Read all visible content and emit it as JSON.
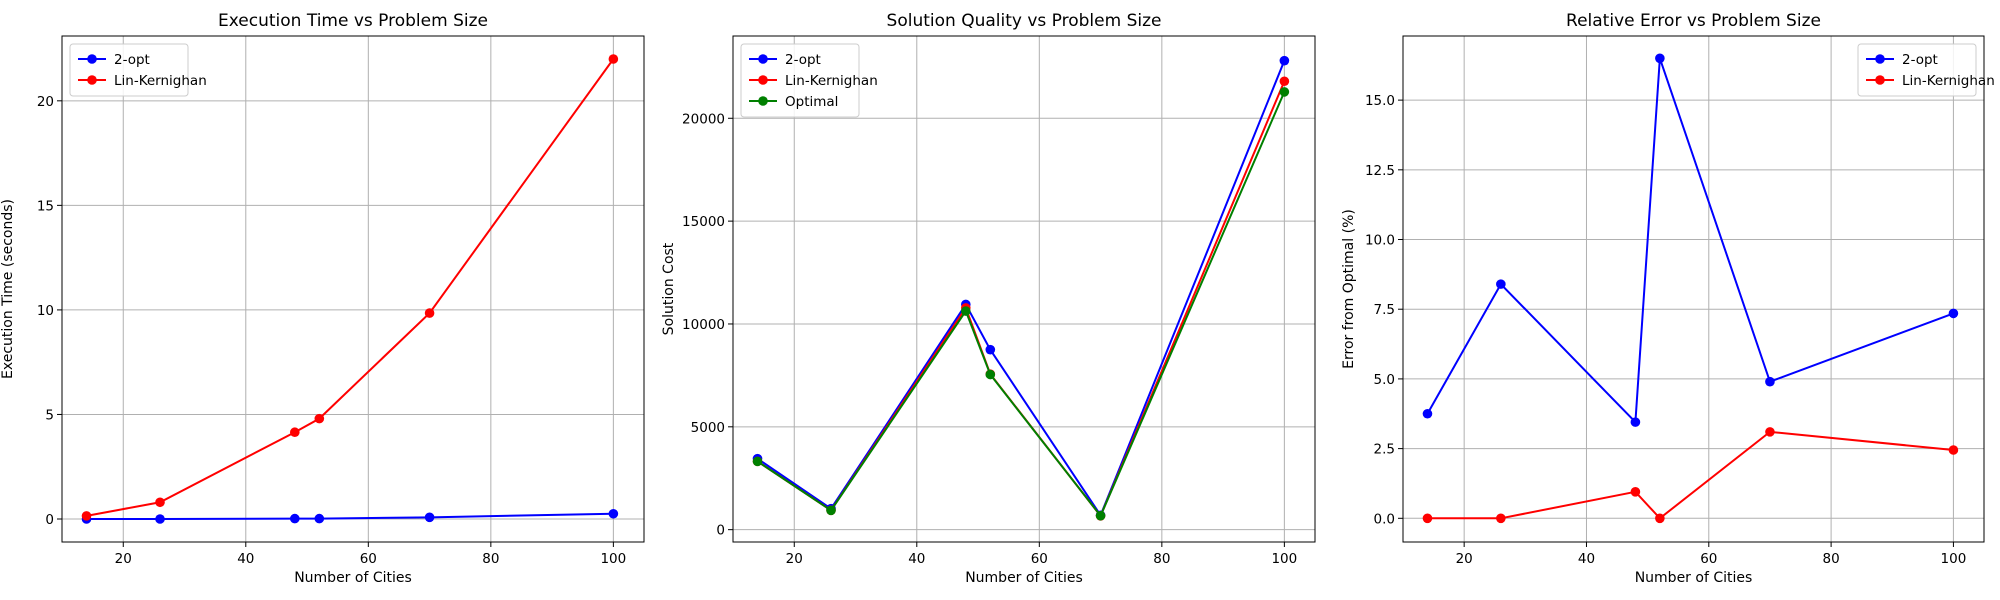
{
  "chart_data": [
    {
      "type": "line",
      "title": "Execution Time vs Problem Size",
      "xlabel": "Number of Cities",
      "ylabel": "Execution Time (seconds)",
      "xlim": [
        10,
        105
      ],
      "ylim": [
        -1.1,
        23.1
      ],
      "xticks": [
        20,
        40,
        60,
        80,
        100
      ],
      "yticks": [
        0,
        5,
        10,
        15,
        20
      ],
      "ytick_labels": [
        "0",
        "5",
        "10",
        "15",
        "20"
      ],
      "grid": true,
      "legend": "top-left",
      "x": [
        14,
        26,
        48,
        52,
        70,
        100
      ],
      "series": [
        {
          "name": "2-opt",
          "color": "#0000ff",
          "values": [
            0.0,
            0.0,
            0.02,
            0.02,
            0.08,
            0.25
          ]
        },
        {
          "name": "Lin-Kernighan",
          "color": "#ff0000",
          "values": [
            0.15,
            0.8,
            4.15,
            4.8,
            9.85,
            22.0
          ]
        }
      ]
    },
    {
      "type": "line",
      "title": "Solution Quality vs Problem Size",
      "xlabel": "Number of Cities",
      "ylabel": "Solution Cost",
      "xlim": [
        10,
        105
      ],
      "ylim": [
        -600,
        24000
      ],
      "xticks": [
        20,
        40,
        60,
        80,
        100
      ],
      "yticks": [
        0,
        5000,
        10000,
        15000,
        20000
      ],
      "ytick_labels": [
        "0",
        "5000",
        "10000",
        "15000",
        "20000"
      ],
      "grid": true,
      "legend": "top-left",
      "x": [
        14,
        26,
        48,
        52,
        70,
        100
      ],
      "series": [
        {
          "name": "2-opt",
          "color": "#0000ff",
          "values": [
            3450,
            1020,
            10950,
            8750,
            700,
            22800
          ]
        },
        {
          "name": "Lin-Kernighan",
          "color": "#ff0000",
          "values": [
            3320,
            940,
            10780,
            7560,
            670,
            21800
          ]
        },
        {
          "name": "Optimal",
          "color": "#008000",
          "values": [
            3320,
            937,
            10628,
            7542,
            675,
            21282
          ]
        }
      ]
    },
    {
      "type": "line",
      "title": "Relative Error vs Problem Size",
      "xlabel": "Number of Cities",
      "ylabel": "Error from Optimal (%)",
      "xlim": [
        10,
        105
      ],
      "ylim": [
        -0.85,
        17.3
      ],
      "xticks": [
        20,
        40,
        60,
        80,
        100
      ],
      "yticks": [
        0,
        2.5,
        5,
        7.5,
        10,
        12.5,
        15
      ],
      "ytick_labels": [
        "0.0",
        "2.5",
        "5.0",
        "7.5",
        "10.0",
        "12.5",
        "15.0"
      ],
      "grid": true,
      "legend": "top-right",
      "x": [
        14,
        26,
        48,
        52,
        70,
        100
      ],
      "series": [
        {
          "name": "2-opt",
          "color": "#0000ff",
          "values": [
            3.75,
            8.4,
            3.45,
            16.5,
            4.9,
            7.35
          ]
        },
        {
          "name": "Lin-Kernighan",
          "color": "#ff0000",
          "values": [
            0.0,
            0.0,
            0.95,
            0.0,
            3.1,
            2.45
          ]
        }
      ]
    }
  ]
}
